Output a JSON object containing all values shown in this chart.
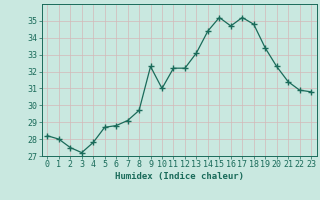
{
  "x": [
    0,
    1,
    2,
    3,
    4,
    5,
    6,
    7,
    8,
    9,
    10,
    11,
    12,
    13,
    14,
    15,
    16,
    17,
    18,
    19,
    20,
    21,
    22,
    23
  ],
  "y": [
    28.2,
    28.0,
    27.5,
    27.2,
    27.8,
    28.7,
    28.8,
    29.1,
    29.7,
    32.3,
    31.0,
    32.2,
    32.2,
    33.1,
    34.4,
    35.2,
    34.7,
    35.2,
    34.8,
    33.4,
    32.3,
    31.4,
    30.9,
    30.8
  ],
  "line_color": "#1a6b5a",
  "marker": "+",
  "marker_size": 5,
  "bg_color": "#c9e8e0",
  "grid_color": "#b8d8d0",
  "xlabel": "Humidex (Indice chaleur)",
  "ylim": [
    27,
    36
  ],
  "xlim": [
    -0.5,
    23.5
  ],
  "yticks": [
    27,
    28,
    29,
    30,
    31,
    32,
    33,
    34,
    35
  ],
  "xticks": [
    0,
    1,
    2,
    3,
    4,
    5,
    6,
    7,
    8,
    9,
    10,
    11,
    12,
    13,
    14,
    15,
    16,
    17,
    18,
    19,
    20,
    21,
    22,
    23
  ],
  "tick_color": "#1a6b5a",
  "label_fontsize": 6.5,
  "tick_fontsize": 6.0,
  "linewidth": 0.9
}
